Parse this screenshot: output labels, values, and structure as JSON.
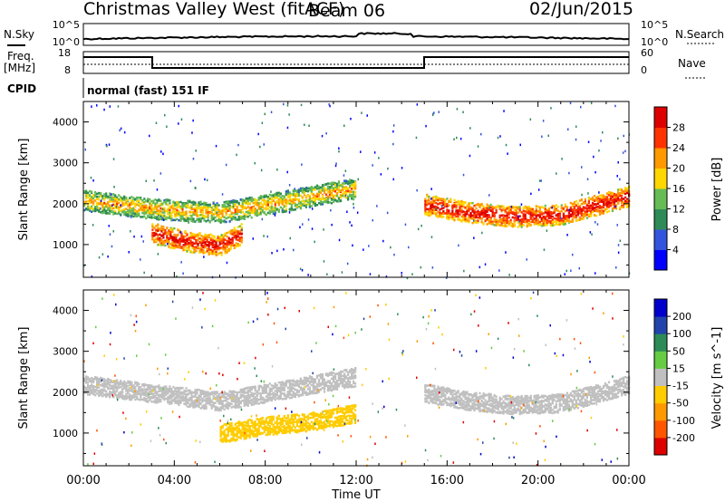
{
  "header": {
    "title": "Christmas Valley West (fitACF)",
    "beam": "Beam 06",
    "date": "02/Jun/2015"
  },
  "strips": {
    "noise": {
      "left_label": "N.Sky",
      "right_label": "N.Search",
      "left_ticks": [
        "10^5",
        "10^0"
      ],
      "right_ticks": [
        "10^5",
        "10^0"
      ]
    },
    "freq": {
      "left_label_1": "Freq.",
      "left_label_2": "[MHz]",
      "right_label": "Nave",
      "left_ticks": [
        "18",
        "8"
      ],
      "right_ticks": [
        "60",
        "0"
      ]
    },
    "cpid": {
      "label": "CPID",
      "text": "normal (fast) 151 IF"
    }
  },
  "chart_data": [
    {
      "type": "heatmap",
      "title": "",
      "panel": "power",
      "ylabel": "Slant Range [km]",
      "xlabel": "",
      "ylim": [
        200,
        4500
      ],
      "xlim": [
        0,
        24
      ],
      "yticks": [
        "1000",
        "2000",
        "3000",
        "4000"
      ],
      "colorbar": {
        "label": "Power [dB]",
        "ticks": [
          "28",
          "24",
          "20",
          "16",
          "12",
          "8",
          "4"
        ],
        "range": [
          0,
          30
        ],
        "colors": [
          "#0000ff",
          "#3355dd",
          "#2e8b57",
          "#66bb55",
          "#ffd700",
          "#ff9900",
          "#ff3300",
          "#dd0000"
        ]
      },
      "features": [
        {
          "name": "echo-band",
          "x": [
            0,
            3,
            6,
            9,
            12
          ],
          "y": [
            2100,
            1900,
            1800,
            2100,
            2400
          ],
          "intensity": "mid"
        },
        {
          "name": "strong-echo",
          "x": [
            3,
            4.5,
            6,
            7
          ],
          "y": [
            1300,
            1100,
            1000,
            1300
          ],
          "intensity": "high"
        },
        {
          "name": "dayside-band",
          "x": [
            15,
            17,
            19,
            21,
            24
          ],
          "y": [
            2000,
            1800,
            1700,
            1750,
            2200
          ],
          "intensity": "high"
        }
      ]
    },
    {
      "type": "heatmap",
      "title": "",
      "panel": "velocity",
      "ylabel": "Slant Range [km]",
      "xlabel": "Time UT",
      "ylim": [
        200,
        4500
      ],
      "xlim": [
        0,
        24
      ],
      "yticks": [
        "1000",
        "2000",
        "3000",
        "4000"
      ],
      "xticks": [
        "00:00",
        "04:00",
        "08:00",
        "12:00",
        "16:00",
        "20:00",
        "00:00"
      ],
      "colorbar": {
        "label": "Velocity [m s^-1]",
        "ticks": [
          "200",
          "100",
          "50",
          "15",
          "-15",
          "-50",
          "-100",
          "-200"
        ],
        "range": [
          -250,
          250
        ],
        "colors": [
          "#dd0000",
          "#ff5500",
          "#ff9900",
          "#ffcc00",
          "#c0c0c0",
          "#66cc44",
          "#2e8b57",
          "#2244aa",
          "#0000cc"
        ]
      },
      "features": [
        {
          "name": "ground-scatter-band",
          "x": [
            0,
            3,
            6,
            9,
            12
          ],
          "y": [
            2200,
            2000,
            1800,
            2100,
            2400
          ],
          "velocity": 0
        },
        {
          "name": "dayside-ground-scatter",
          "x": [
            15,
            17,
            19,
            21,
            24
          ],
          "y": [
            2000,
            1800,
            1700,
            1750,
            2200
          ],
          "velocity": 0
        },
        {
          "name": "negative-velocity-patch",
          "x": [
            6,
            8,
            10,
            12
          ],
          "y": [
            1000,
            1200,
            1300,
            1500
          ],
          "velocity": -60
        }
      ]
    }
  ]
}
